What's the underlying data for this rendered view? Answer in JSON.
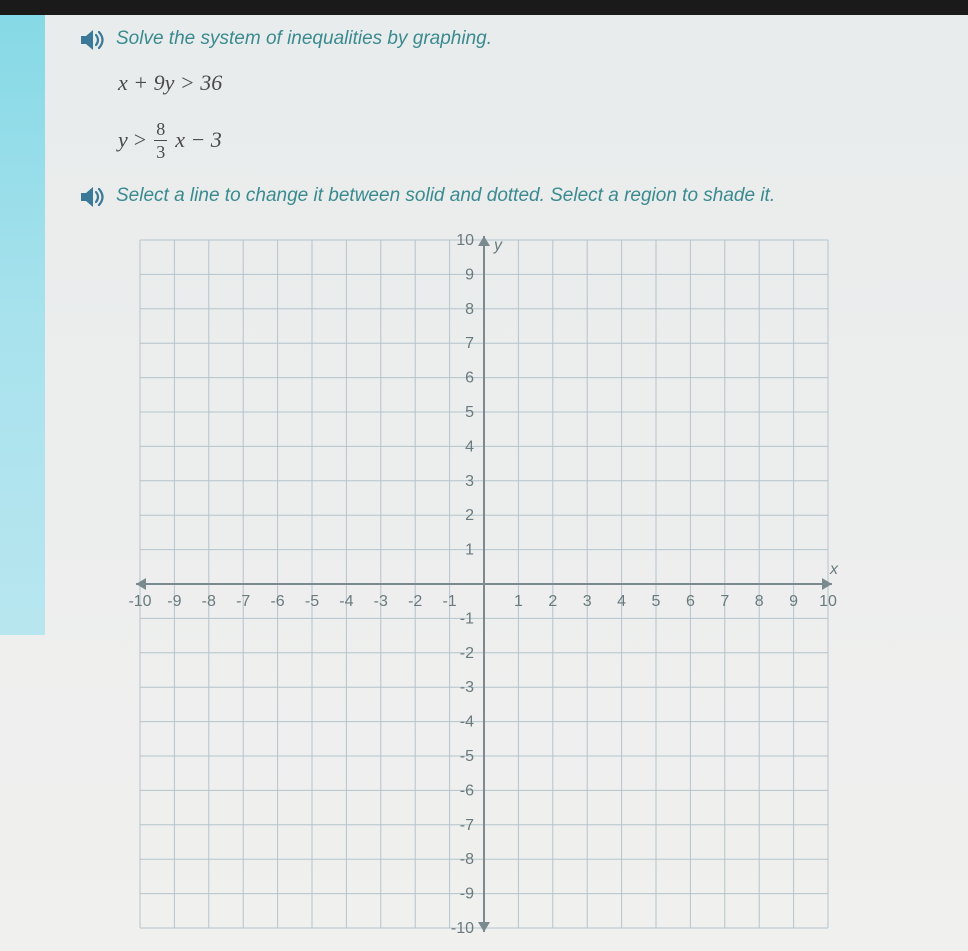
{
  "prompt1": "Solve the system of inequalities by graphing.",
  "eq1": "x + 9y > 36",
  "eq2": {
    "lhs": "y",
    "op": ">",
    "frac_num": "8",
    "frac_den": "3",
    "tail": "x − 3"
  },
  "prompt2": "Select a line to change it between solid and dotted. Select a region to shade it.",
  "graph": {
    "size": 712,
    "grid_min": -10,
    "grid_max": 10,
    "tick_min": -10,
    "tick_max": 10,
    "tick_step": 1,
    "grid_color": "#b4c4cc",
    "axis_color": "#7a8a8e",
    "label_color": "#6a7a7e",
    "bg_color": "#eef1f0",
    "x_label": "x",
    "y_label": "y",
    "label_font_size": 16,
    "tick_font_size": 16,
    "arrow_size": 10
  },
  "speaker_icon_color": "#3a7a98"
}
